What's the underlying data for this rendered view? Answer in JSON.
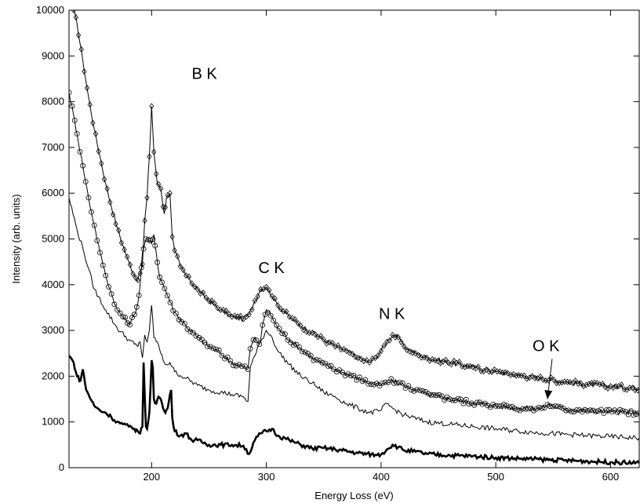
{
  "chart_data": {
    "type": "line",
    "title": "",
    "xlabel": "Energy Loss (eV)",
    "ylabel": "Intensity (arb. units)",
    "xlim": [
      128,
      625
    ],
    "ylim": [
      0,
      10000
    ],
    "xticks": [
      200,
      300,
      400,
      500,
      600
    ],
    "yticks": [
      0,
      1000,
      2000,
      3000,
      4000,
      5000,
      6000,
      7000,
      8000,
      9000,
      10000
    ],
    "grid": false,
    "legend": "none",
    "annotations": [
      {
        "text": "B K",
        "x": 235,
        "y": 8500
      },
      {
        "text": "C K",
        "x": 293,
        "y": 4250
      },
      {
        "text": "N K",
        "x": 398,
        "y": 3250
      },
      {
        "text": "O K",
        "x": 532,
        "y": 2550,
        "arrow_to": [
          545,
          1500
        ]
      }
    ],
    "series": [
      {
        "marker": "diamond",
        "line_weight": "thin",
        "x": [
          132,
          135,
          140,
          145,
          150,
          155,
          160,
          165,
          170,
          175,
          180,
          185,
          188,
          190,
          192,
          194,
          196,
          198,
          200,
          202,
          205,
          208,
          211,
          213,
          216,
          218,
          220,
          225,
          230,
          240,
          250,
          260,
          270,
          280,
          285,
          290,
          295,
          300,
          305,
          310,
          320,
          330,
          340,
          350,
          360,
          370,
          380,
          390,
          395,
          400,
          405,
          410,
          415,
          420,
          430,
          440,
          460,
          480,
          500,
          520,
          540,
          560,
          580,
          600,
          625
        ],
        "y": [
          10000,
          9700,
          8900,
          8100,
          7400,
          6800,
          6200,
          5700,
          5250,
          4850,
          4500,
          4200,
          4100,
          4250,
          4450,
          5400,
          5900,
          6800,
          7900,
          6900,
          6200,
          6100,
          5550,
          5900,
          6000,
          5050,
          4750,
          4400,
          4200,
          3900,
          3650,
          3450,
          3300,
          3250,
          3350,
          3650,
          3900,
          3950,
          3750,
          3550,
          3300,
          3100,
          2950,
          2800,
          2650,
          2550,
          2400,
          2300,
          2400,
          2550,
          2750,
          2900,
          2850,
          2650,
          2500,
          2400,
          2300,
          2200,
          2100,
          2020,
          1950,
          1880,
          1820,
          1780,
          1740
        ]
      },
      {
        "marker": "circle",
        "line_weight": "thin",
        "x": [
          128,
          132,
          135,
          140,
          145,
          150,
          155,
          160,
          165,
          170,
          175,
          178,
          180,
          182,
          185,
          188,
          190,
          192,
          194,
          196,
          198,
          200,
          202,
          204,
          206,
          208,
          210,
          215,
          220,
          230,
          240,
          250,
          260,
          270,
          280,
          284,
          286,
          290,
          294,
          298,
          300,
          305,
          310,
          320,
          330,
          340,
          350,
          360,
          370,
          380,
          390,
          400,
          405,
          410,
          420,
          430,
          440,
          460,
          480,
          500,
          520,
          540,
          545,
          560,
          580,
          600,
          625
        ],
        "y": [
          8200,
          7700,
          7300,
          6600,
          5900,
          5300,
          4700,
          4200,
          3800,
          3450,
          3300,
          3200,
          3150,
          3200,
          3350,
          3600,
          4000,
          4700,
          4900,
          5000,
          4950,
          4900,
          5100,
          4700,
          4300,
          4100,
          4000,
          3700,
          3400,
          3100,
          2850,
          2650,
          2500,
          2300,
          2200,
          2150,
          2600,
          2850,
          2700,
          3250,
          3450,
          3300,
          3050,
          2800,
          2600,
          2400,
          2250,
          2150,
          2050,
          1950,
          1850,
          1800,
          1850,
          1900,
          1800,
          1700,
          1600,
          1500,
          1420,
          1350,
          1300,
          1300,
          1380,
          1280,
          1240,
          1220,
          1200
        ]
      },
      {
        "marker": "none",
        "line_weight": "thin",
        "x": [
          128,
          135,
          140,
          145,
          150,
          160,
          170,
          180,
          185,
          188,
          190,
          192,
          194,
          196,
          198,
          200,
          202,
          205,
          208,
          210,
          213,
          216,
          218,
          220,
          230,
          240,
          250,
          260,
          270,
          280,
          284,
          286,
          290,
          295,
          300,
          305,
          310,
          320,
          330,
          340,
          350,
          360,
          370,
          380,
          390,
          400,
          405,
          410,
          420,
          440,
          460,
          480,
          500,
          520,
          540,
          560,
          580,
          600,
          625
        ],
        "y": [
          5900,
          5200,
          4800,
          4350,
          3900,
          3450,
          3050,
          2800,
          2700,
          2650,
          2750,
          2400,
          2900,
          2750,
          3000,
          3550,
          2850,
          2750,
          2500,
          2350,
          2250,
          2300,
          2200,
          2100,
          1950,
          1800,
          1700,
          1650,
          1600,
          1550,
          1450,
          2200,
          2450,
          2750,
          3000,
          2850,
          2550,
          2250,
          2000,
          1850,
          1650,
          1550,
          1400,
          1300,
          1200,
          1250,
          1400,
          1300,
          1150,
          1000,
          950,
          900,
          850,
          800,
          760,
          730,
          700,
          680,
          650
        ]
      },
      {
        "marker": "none",
        "line_weight": "thick",
        "x": [
          128,
          132,
          135,
          138,
          140,
          143,
          145,
          148,
          150,
          155,
          160,
          165,
          170,
          175,
          180,
          185,
          188,
          190,
          192,
          193,
          194,
          195,
          196,
          198,
          200,
          201,
          202,
          204,
          206,
          208,
          210,
          212,
          214,
          215,
          216,
          217,
          218,
          220,
          225,
          230,
          235,
          240,
          250,
          260,
          270,
          280,
          285,
          290,
          295,
          300,
          305,
          310,
          320,
          330,
          340,
          350,
          360,
          380,
          395,
          400,
          405,
          410,
          415,
          420,
          430,
          440,
          460,
          480,
          500,
          520,
          540,
          560,
          580,
          600,
          625
        ],
        "y": [
          2450,
          2300,
          2000,
          1900,
          2150,
          1700,
          1600,
          1450,
          1350,
          1250,
          1200,
          1100,
          1000,
          950,
          900,
          850,
          800,
          750,
          900,
          2300,
          1600,
          900,
          850,
          1200,
          2350,
          2200,
          1500,
          1400,
          1550,
          1500,
          1300,
          1200,
          1300,
          1450,
          1600,
          1700,
          1100,
          800,
          700,
          750,
          600,
          600,
          500,
          500,
          500,
          480,
          300,
          600,
          750,
          800,
          850,
          700,
          600,
          500,
          420,
          430,
          400,
          320,
          280,
          290,
          400,
          500,
          450,
          380,
          350,
          300,
          270,
          250,
          220,
          200,
          180,
          160,
          140,
          120,
          100
        ]
      }
    ]
  }
}
